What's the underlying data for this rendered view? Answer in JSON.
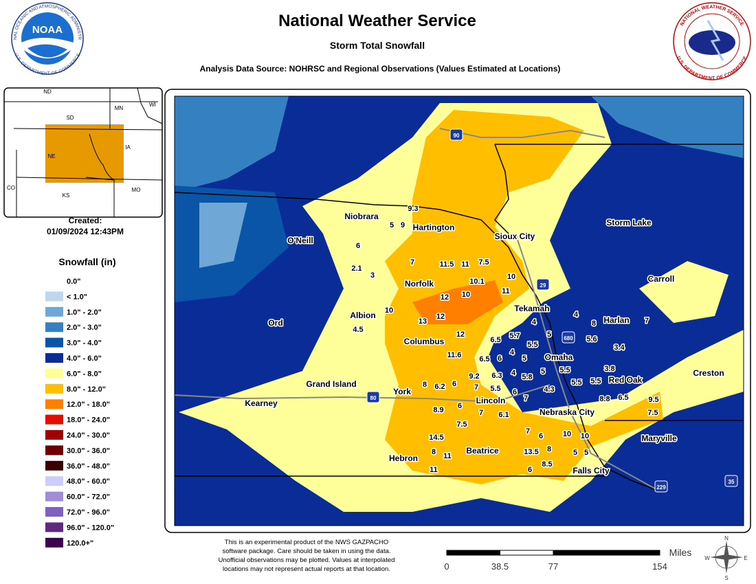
{
  "header": {
    "title": "National Weather Service",
    "subtitle": "Storm Total Snowfall",
    "source": "Analysis Data Source: NOHRSC and Regional Observations (Values Estimated at Locations)"
  },
  "logos": {
    "noaa": "NOAA",
    "noaa_ring_top": "NATIONAL OCEANIC AND ATMOSPHERIC ADMINISTRATION",
    "noaa_ring_bottom": "U.S. DEPARTMENT OF COMMERCE",
    "nws_ring_top": "NATIONAL WEATHER SERVICE",
    "nws_ring_bottom": "U.S. DEPARTMENT OF COMMERCE"
  },
  "inset": {
    "labels": [
      "ND",
      "SD",
      "MN",
      "WI",
      "NE",
      "IA",
      "CO",
      "KS",
      "MO"
    ]
  },
  "created": {
    "label": "Created:",
    "date": "01/09/2024 12:43PM"
  },
  "legend": {
    "title": "Snowfall (in)",
    "items": [
      {
        "label": "0.0\"",
        "color": "#ffffff"
      },
      {
        "label": "< 1.0\"",
        "color": "#bdd7ee"
      },
      {
        "label": "1.0\" - 2.0\"",
        "color": "#6fa8d6"
      },
      {
        "label": "2.0\" - 3.0\"",
        "color": "#3580c0"
      },
      {
        "label": "3.0\" - 4.0\"",
        "color": "#0b55a8"
      },
      {
        "label": "4.0\" - 6.0\"",
        "color": "#0a2c96"
      },
      {
        "label": "6.0\" - 8.0\"",
        "color": "#ffff99"
      },
      {
        "label": "8.0\" - 12.0\"",
        "color": "#ffbf00"
      },
      {
        "label": "12.0\" - 18.0\"",
        "color": "#ff8000"
      },
      {
        "label": "18.0\" - 24.0\"",
        "color": "#e01000"
      },
      {
        "label": "24.0\" - 30.0\"",
        "color": "#a00000"
      },
      {
        "label": "30.0\" - 36.0\"",
        "color": "#6e0000"
      },
      {
        "label": "36.0\" - 48.0\"",
        "color": "#3a0000"
      },
      {
        "label": "48.0\" - 60.0\"",
        "color": "#ccccff"
      },
      {
        "label": "60.0\" - 72.0\"",
        "color": "#a08cd8"
      },
      {
        "label": "72.0\" - 96.0\"",
        "color": "#8060c0"
      },
      {
        "label": "96.0\" - 120.0\"",
        "color": "#602880"
      },
      {
        "label": "120.0+\"",
        "color": "#400050"
      }
    ]
  },
  "map": {
    "cities": [
      "Niobrara",
      "Hartington",
      "Sioux City",
      "Storm Lake",
      "O'Neill",
      "Norfolk",
      "Carroll",
      "Albion",
      "Tekamah",
      "Harlan",
      "Ord",
      "Columbus",
      "Omaha",
      "Red Oak",
      "Creston",
      "Grand Island",
      "York",
      "Lincoln",
      "Kearney",
      "Nebraska City",
      "Maryville",
      "Hebron",
      "Beatrice",
      "Falls City"
    ],
    "highways": [
      "90",
      "29",
      "680",
      "80",
      "229",
      "35"
    ],
    "snowfall_values": [
      9.3,
      5,
      9,
      6,
      7,
      11.5,
      11,
      7.5,
      2.1,
      3,
      10.1,
      10,
      12,
      10,
      11,
      10,
      4.5,
      13,
      12,
      12,
      4,
      8,
      7,
      4,
      5.7,
      5,
      6.5,
      5.5,
      5.6,
      3.4,
      4,
      5,
      11.6,
      6.5,
      6,
      3.8,
      9.2,
      6.3,
      4,
      5.8,
      5,
      5.5,
      5.5,
      5.5,
      8,
      6.2,
      6,
      7,
      5.5,
      6,
      7,
      4.3,
      8.8,
      6.5,
      9.5,
      6,
      8.9,
      7,
      6.1,
      7.5,
      7.5,
      7,
      6,
      10,
      10,
      14.5,
      8,
      11,
      13.5,
      8,
      5,
      5,
      11,
      6,
      8.5
    ]
  },
  "footer": {
    "disclaimer": [
      "This is an experimental product of the NWS GAZPACHO",
      "software package. Care should be taken in using the data.",
      "Unofficial observations may be plotted. Values at interpolated",
      "locations may not represent actual reports at that location."
    ],
    "scale": {
      "unit": "Miles",
      "ticks": [
        0,
        38.5,
        77,
        154
      ]
    },
    "compass": [
      "N",
      "S",
      "E",
      "W"
    ]
  }
}
